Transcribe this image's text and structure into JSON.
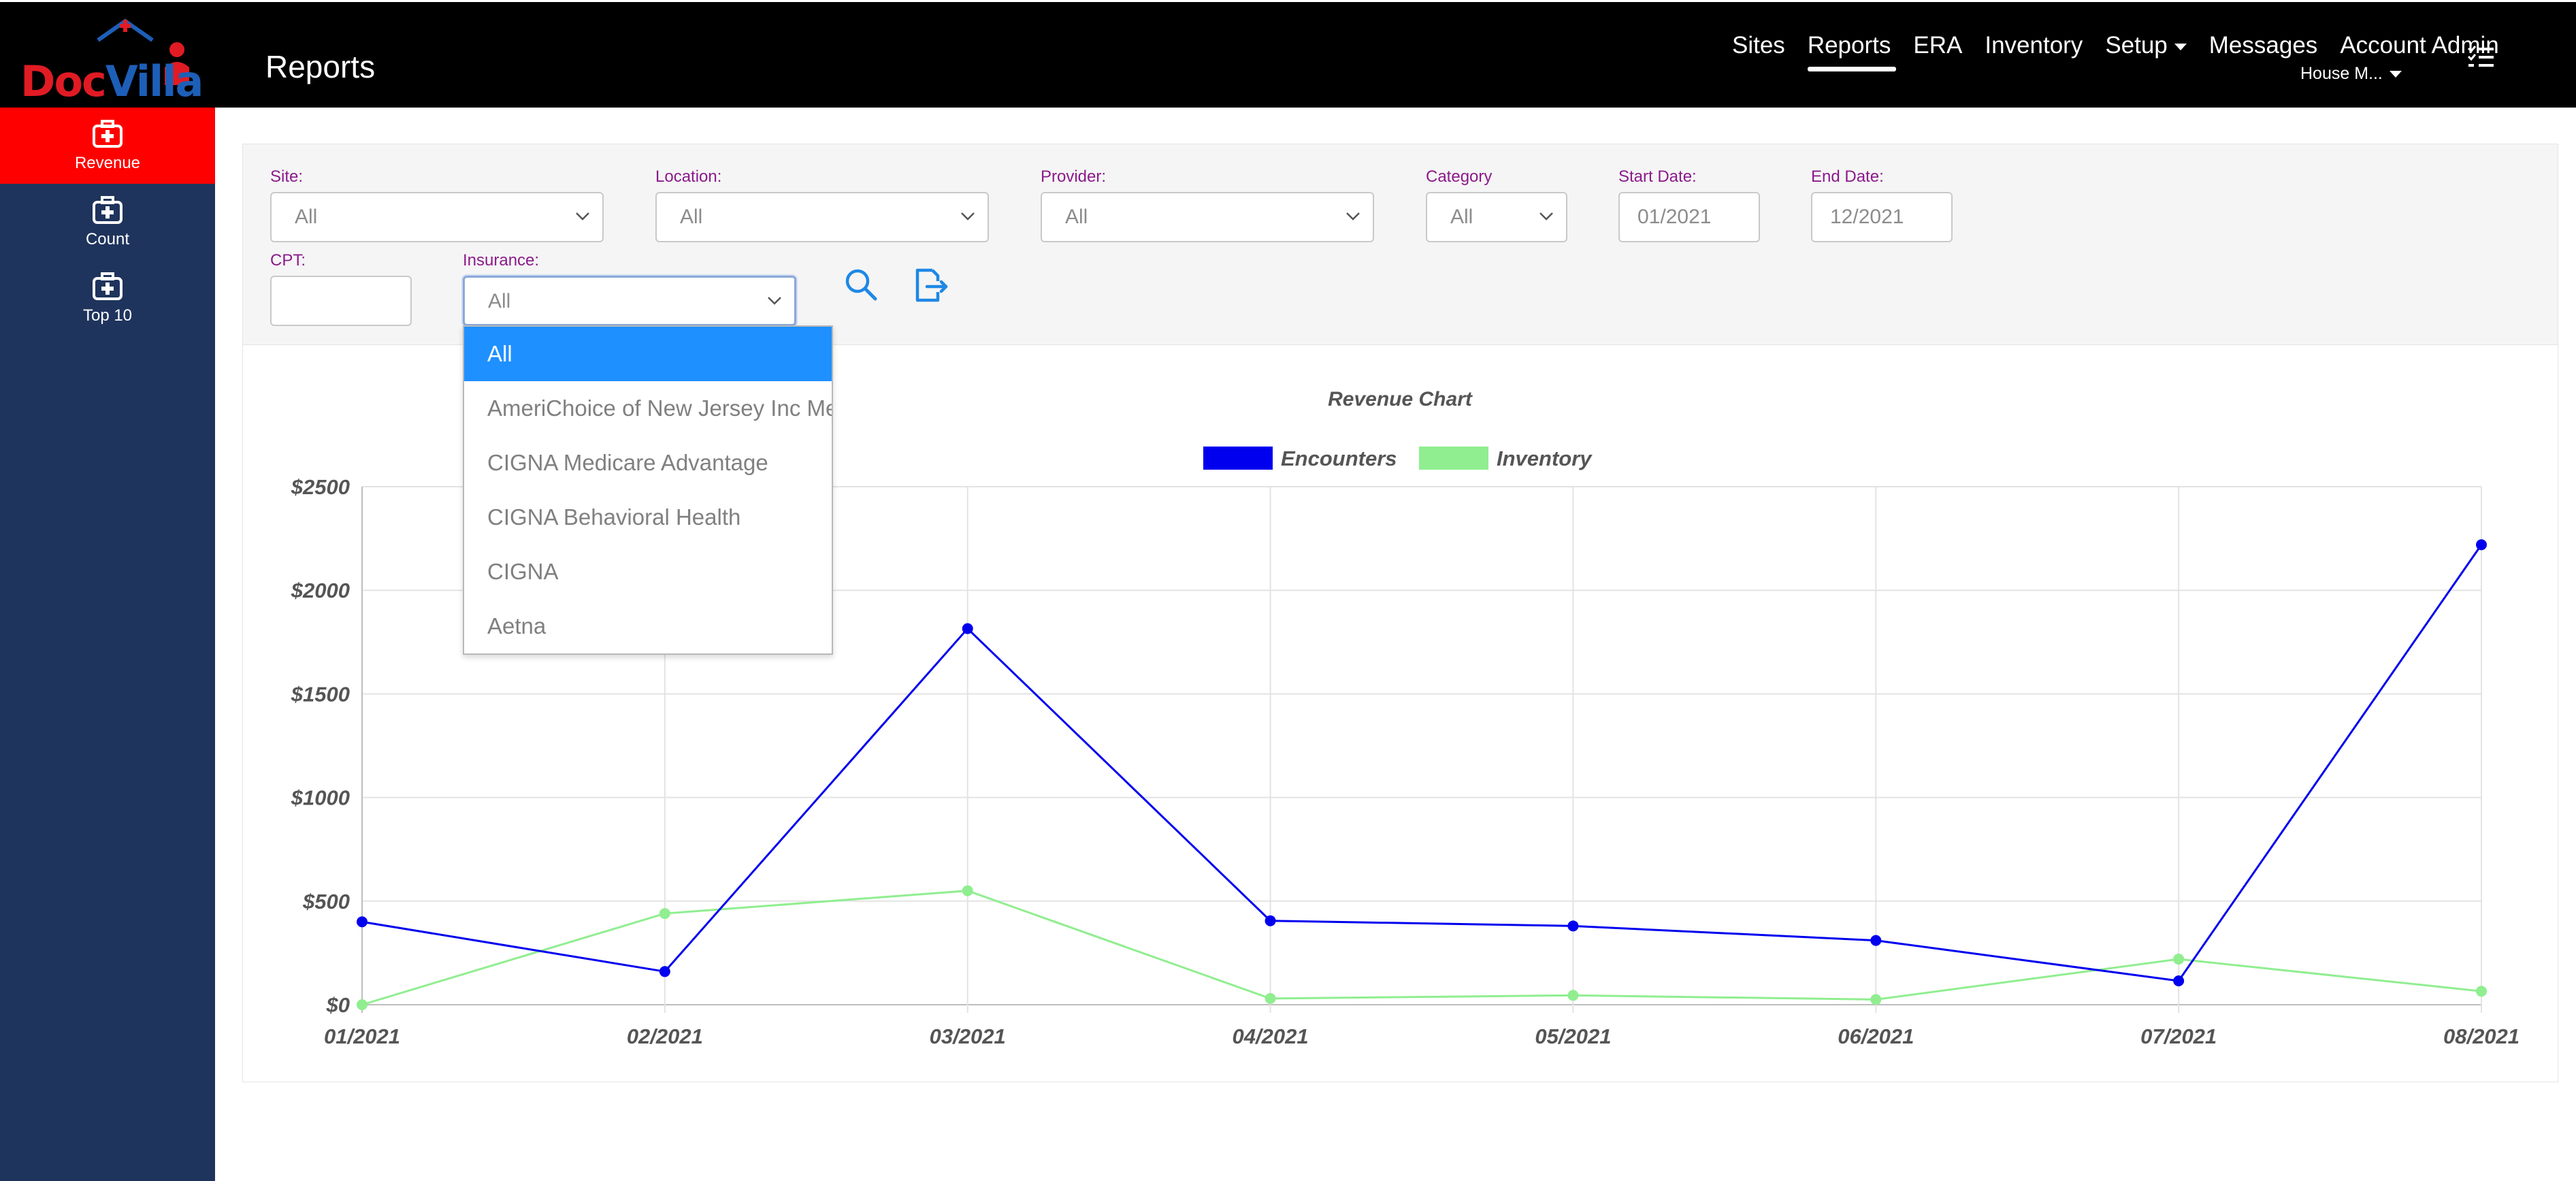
{
  "app": {
    "logo_text_doc": "Doc",
    "logo_text_villa": "Villa",
    "page_title": "Reports"
  },
  "nav": {
    "items": [
      "Sites",
      "Reports",
      "ERA",
      "Inventory",
      "Setup",
      "Messages",
      "Account Admin"
    ],
    "active": "Reports",
    "account_sub": "House M..."
  },
  "sidebar": {
    "items": [
      {
        "label": "Revenue",
        "icon": "medical-kit-icon",
        "active": true
      },
      {
        "label": "Count",
        "icon": "medical-kit-icon",
        "active": false
      },
      {
        "label": "Top 10",
        "icon": "medical-kit-icon",
        "active": false
      }
    ]
  },
  "filters": {
    "site": {
      "label": "Site:",
      "value": "All"
    },
    "location": {
      "label": "Location:",
      "value": "All"
    },
    "provider": {
      "label": "Provider:",
      "value": "All"
    },
    "category": {
      "label": "Category",
      "value": "All"
    },
    "start_date": {
      "label": "Start Date:",
      "value": "01/2021"
    },
    "end_date": {
      "label": "End Date:",
      "value": "12/2021"
    },
    "cpt": {
      "label": "CPT:",
      "value": ""
    },
    "insurance": {
      "label": "Insurance:",
      "value": "All",
      "options": [
        "All",
        "AmeriChoice of New Jersey Inc Me",
        "CIGNA Medicare Advantage",
        "CIGNA Behavioral Health",
        "CIGNA",
        "Aetna"
      ],
      "selected_index": 0
    }
  },
  "colors": {
    "encounters": "#0000ee",
    "inventory": "#90ee90",
    "accent_red": "#ff0000",
    "sidebar_bg": "#1f345c",
    "label_purple": "#8b1a8b"
  },
  "chart_data": {
    "type": "line",
    "title": "Revenue Chart",
    "categories": [
      "01/2021",
      "02/2021",
      "03/2021",
      "04/2021",
      "05/2021",
      "06/2021",
      "07/2021",
      "08/2021"
    ],
    "series": [
      {
        "name": "Encounters",
        "color": "#0000ee",
        "values": [
          400,
          160,
          1815,
          405,
          380,
          310,
          115,
          2220
        ]
      },
      {
        "name": "Inventory",
        "color": "#90ee90",
        "values": [
          0,
          440,
          550,
          30,
          45,
          25,
          220,
          65
        ]
      }
    ],
    "y_ticks": [
      "$0",
      "$500",
      "$1000",
      "$1500",
      "$2000",
      "$2500"
    ],
    "ylim": [
      0,
      2500
    ],
    "grid": true,
    "legend": "top-center"
  }
}
